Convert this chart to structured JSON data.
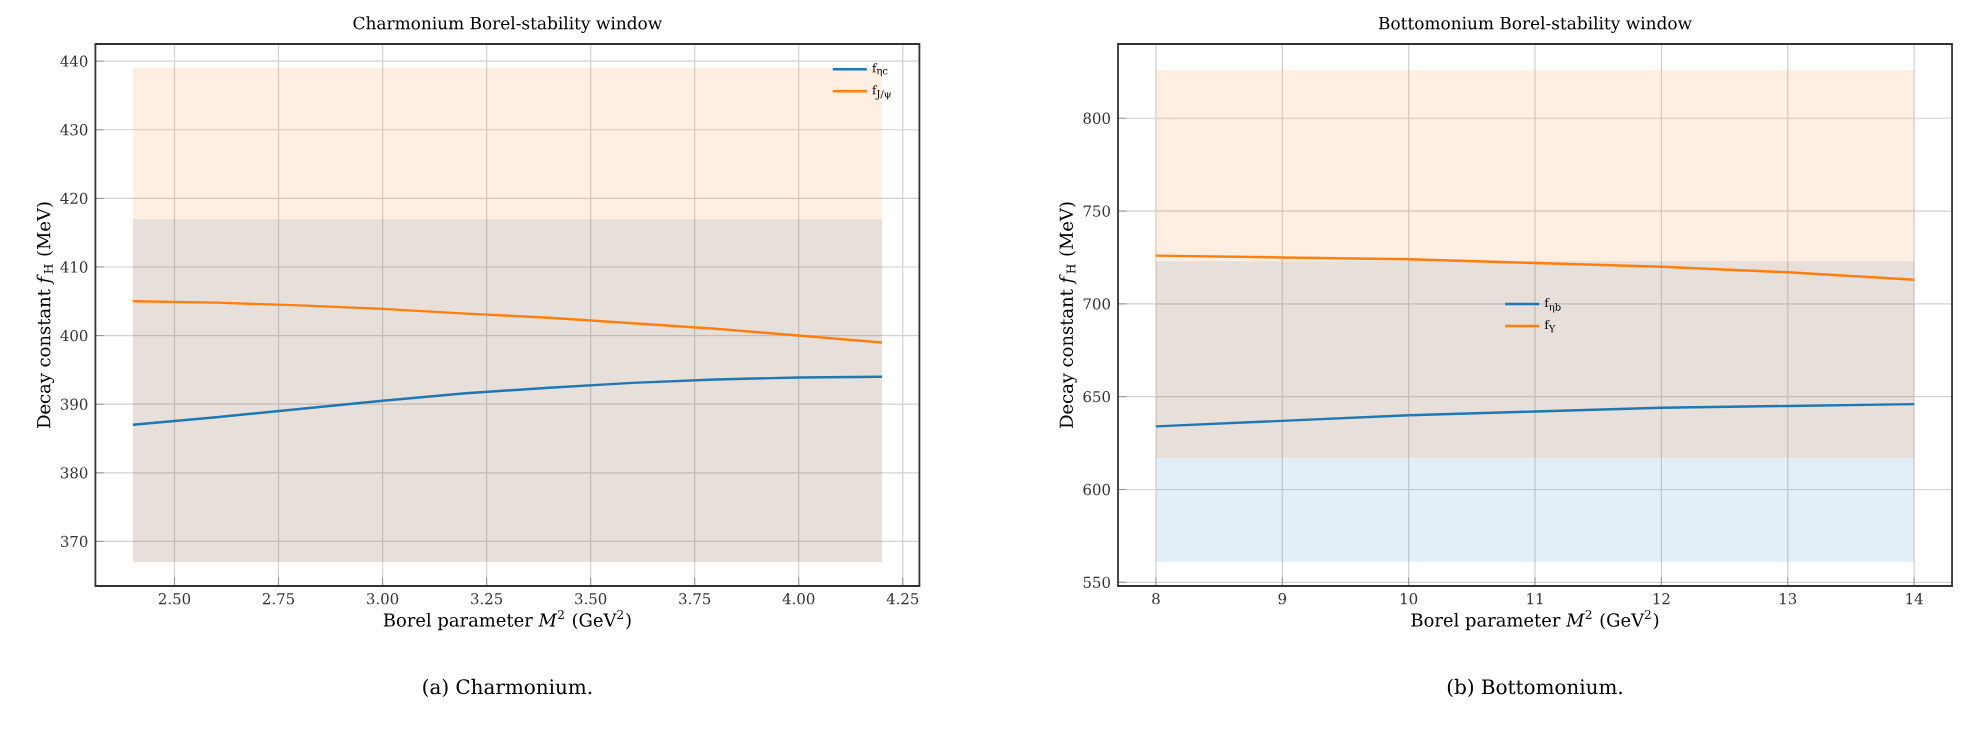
{
  "chart_data": [
    {
      "type": "line",
      "title": "Charmonium Borel-stability window",
      "xlabel": "Borel parameter *M*$^{2}$ (GeV$^{2}$)",
      "ylabel": "Decay constant *f*$_{H}$ (MeV)",
      "annotations": [
        "(a) Charmonium."
      ],
      "xlim": [
        2.31,
        4.29
      ],
      "ylim": [
        363.5,
        442.5
      ],
      "xticks": [
        {
          "value": 2.5,
          "label": "2.50"
        },
        {
          "value": 2.75,
          "label": "2.75"
        },
        {
          "value": 3.0,
          "label": "3.00"
        },
        {
          "value": 3.25,
          "label": "3.25"
        },
        {
          "value": 3.5,
          "label": "3.50"
        },
        {
          "value": 3.75,
          "label": "3.75"
        },
        {
          "value": 4.0,
          "label": "4.00"
        },
        {
          "value": 4.25,
          "label": "4.25"
        }
      ],
      "yticks": [
        370,
        380,
        390,
        400,
        410,
        420,
        430,
        440
      ],
      "grid": true,
      "legend": "top right",
      "x": [
        2.4,
        2.6,
        2.8,
        3.0,
        3.2,
        3.4,
        3.6,
        3.8,
        4.0,
        4.2
      ],
      "series": [
        {
          "name": "f$_{ηc}$",
          "color": "#1f77b4",
          "values": [
            387,
            388.1,
            389.3,
            390.5,
            391.6,
            392.4,
            393.1,
            393.6,
            393.9,
            394.0
          ],
          "lower": [
            367,
            367,
            367,
            367,
            367,
            367,
            367,
            367,
            367,
            367
          ],
          "upper": [
            417,
            417,
            417,
            417,
            417,
            417,
            417,
            417,
            417,
            417
          ]
        },
        {
          "name": "f$_{J/ψ}$",
          "color": "#ff7f0e",
          "values": [
            405,
            404.8,
            404.4,
            403.9,
            403.2,
            402.6,
            401.8,
            401.0,
            400.0,
            399.0
          ],
          "lower": [
            367,
            367,
            367,
            367,
            367,
            367,
            367,
            367,
            367,
            367
          ],
          "upper": [
            439,
            439,
            439,
            439,
            439,
            439,
            439,
            439,
            439,
            439
          ]
        }
      ]
    },
    {
      "type": "line",
      "title": "Bottomonium Borel-stability window",
      "xlabel": "Borel parameter *M*$^{2}$ (GeV$^{2}$)",
      "ylabel": "Decay constant *f*$_{H}$ (MeV)",
      "annotations": [
        "(b) Bottomonium."
      ],
      "xlim": [
        7.7,
        14.3
      ],
      "ylim": [
        548,
        840
      ],
      "xticks": [
        8,
        9,
        10,
        11,
        12,
        13,
        14
      ],
      "yticks": [
        550,
        600,
        650,
        700,
        750,
        800
      ],
      "grid": true,
      "legend": "center",
      "x": [
        8,
        9,
        10,
        11,
        12,
        13,
        14
      ],
      "series": [
        {
          "name": "f$_{ηb}$",
          "color": "#1f77b4",
          "values": [
            634,
            637,
            640,
            642,
            644,
            645,
            646
          ],
          "lower": [
            561,
            561,
            561,
            561,
            561,
            561,
            561
          ],
          "upper": [
            723,
            723,
            723,
            723,
            723,
            723,
            723
          ]
        },
        {
          "name": "f$_{Υ}$",
          "color": "#ff7f0e",
          "values": [
            726,
            725,
            724,
            722,
            720,
            717,
            713
          ],
          "lower": [
            617,
            617,
            617,
            617,
            617,
            617,
            617
          ],
          "upper": [
            826,
            826,
            826,
            826,
            826,
            826,
            826
          ]
        }
      ]
    }
  ]
}
